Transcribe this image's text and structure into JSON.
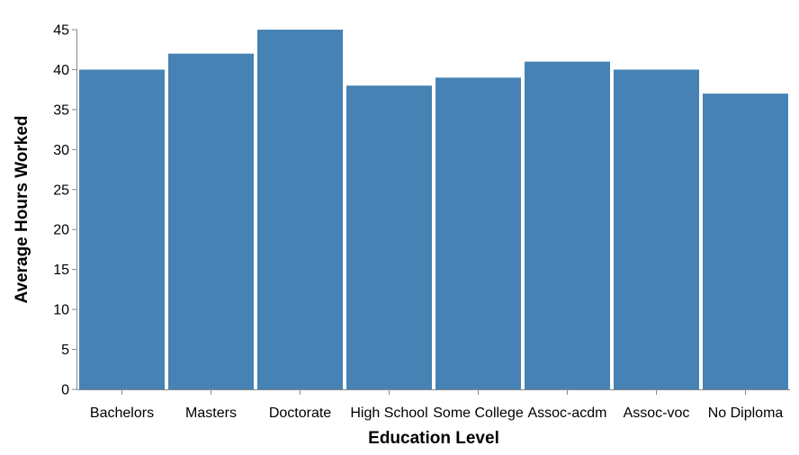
{
  "chart_data": {
    "type": "bar",
    "categories": [
      "Bachelors",
      "Masters",
      "Doctorate",
      "High School",
      "Some College",
      "Assoc-acdm",
      "Assoc-voc",
      "No Diploma"
    ],
    "values": [
      40,
      42,
      45,
      38,
      39,
      41,
      40,
      37
    ],
    "xlabel": "Education Level",
    "ylabel": "Average Hours Worked",
    "ylim": [
      0,
      45
    ],
    "yticks": [
      0,
      5,
      10,
      15,
      20,
      25,
      30,
      35,
      40,
      45
    ],
    "bar_color": "#4682b4",
    "grid": false,
    "legend": "none"
  }
}
